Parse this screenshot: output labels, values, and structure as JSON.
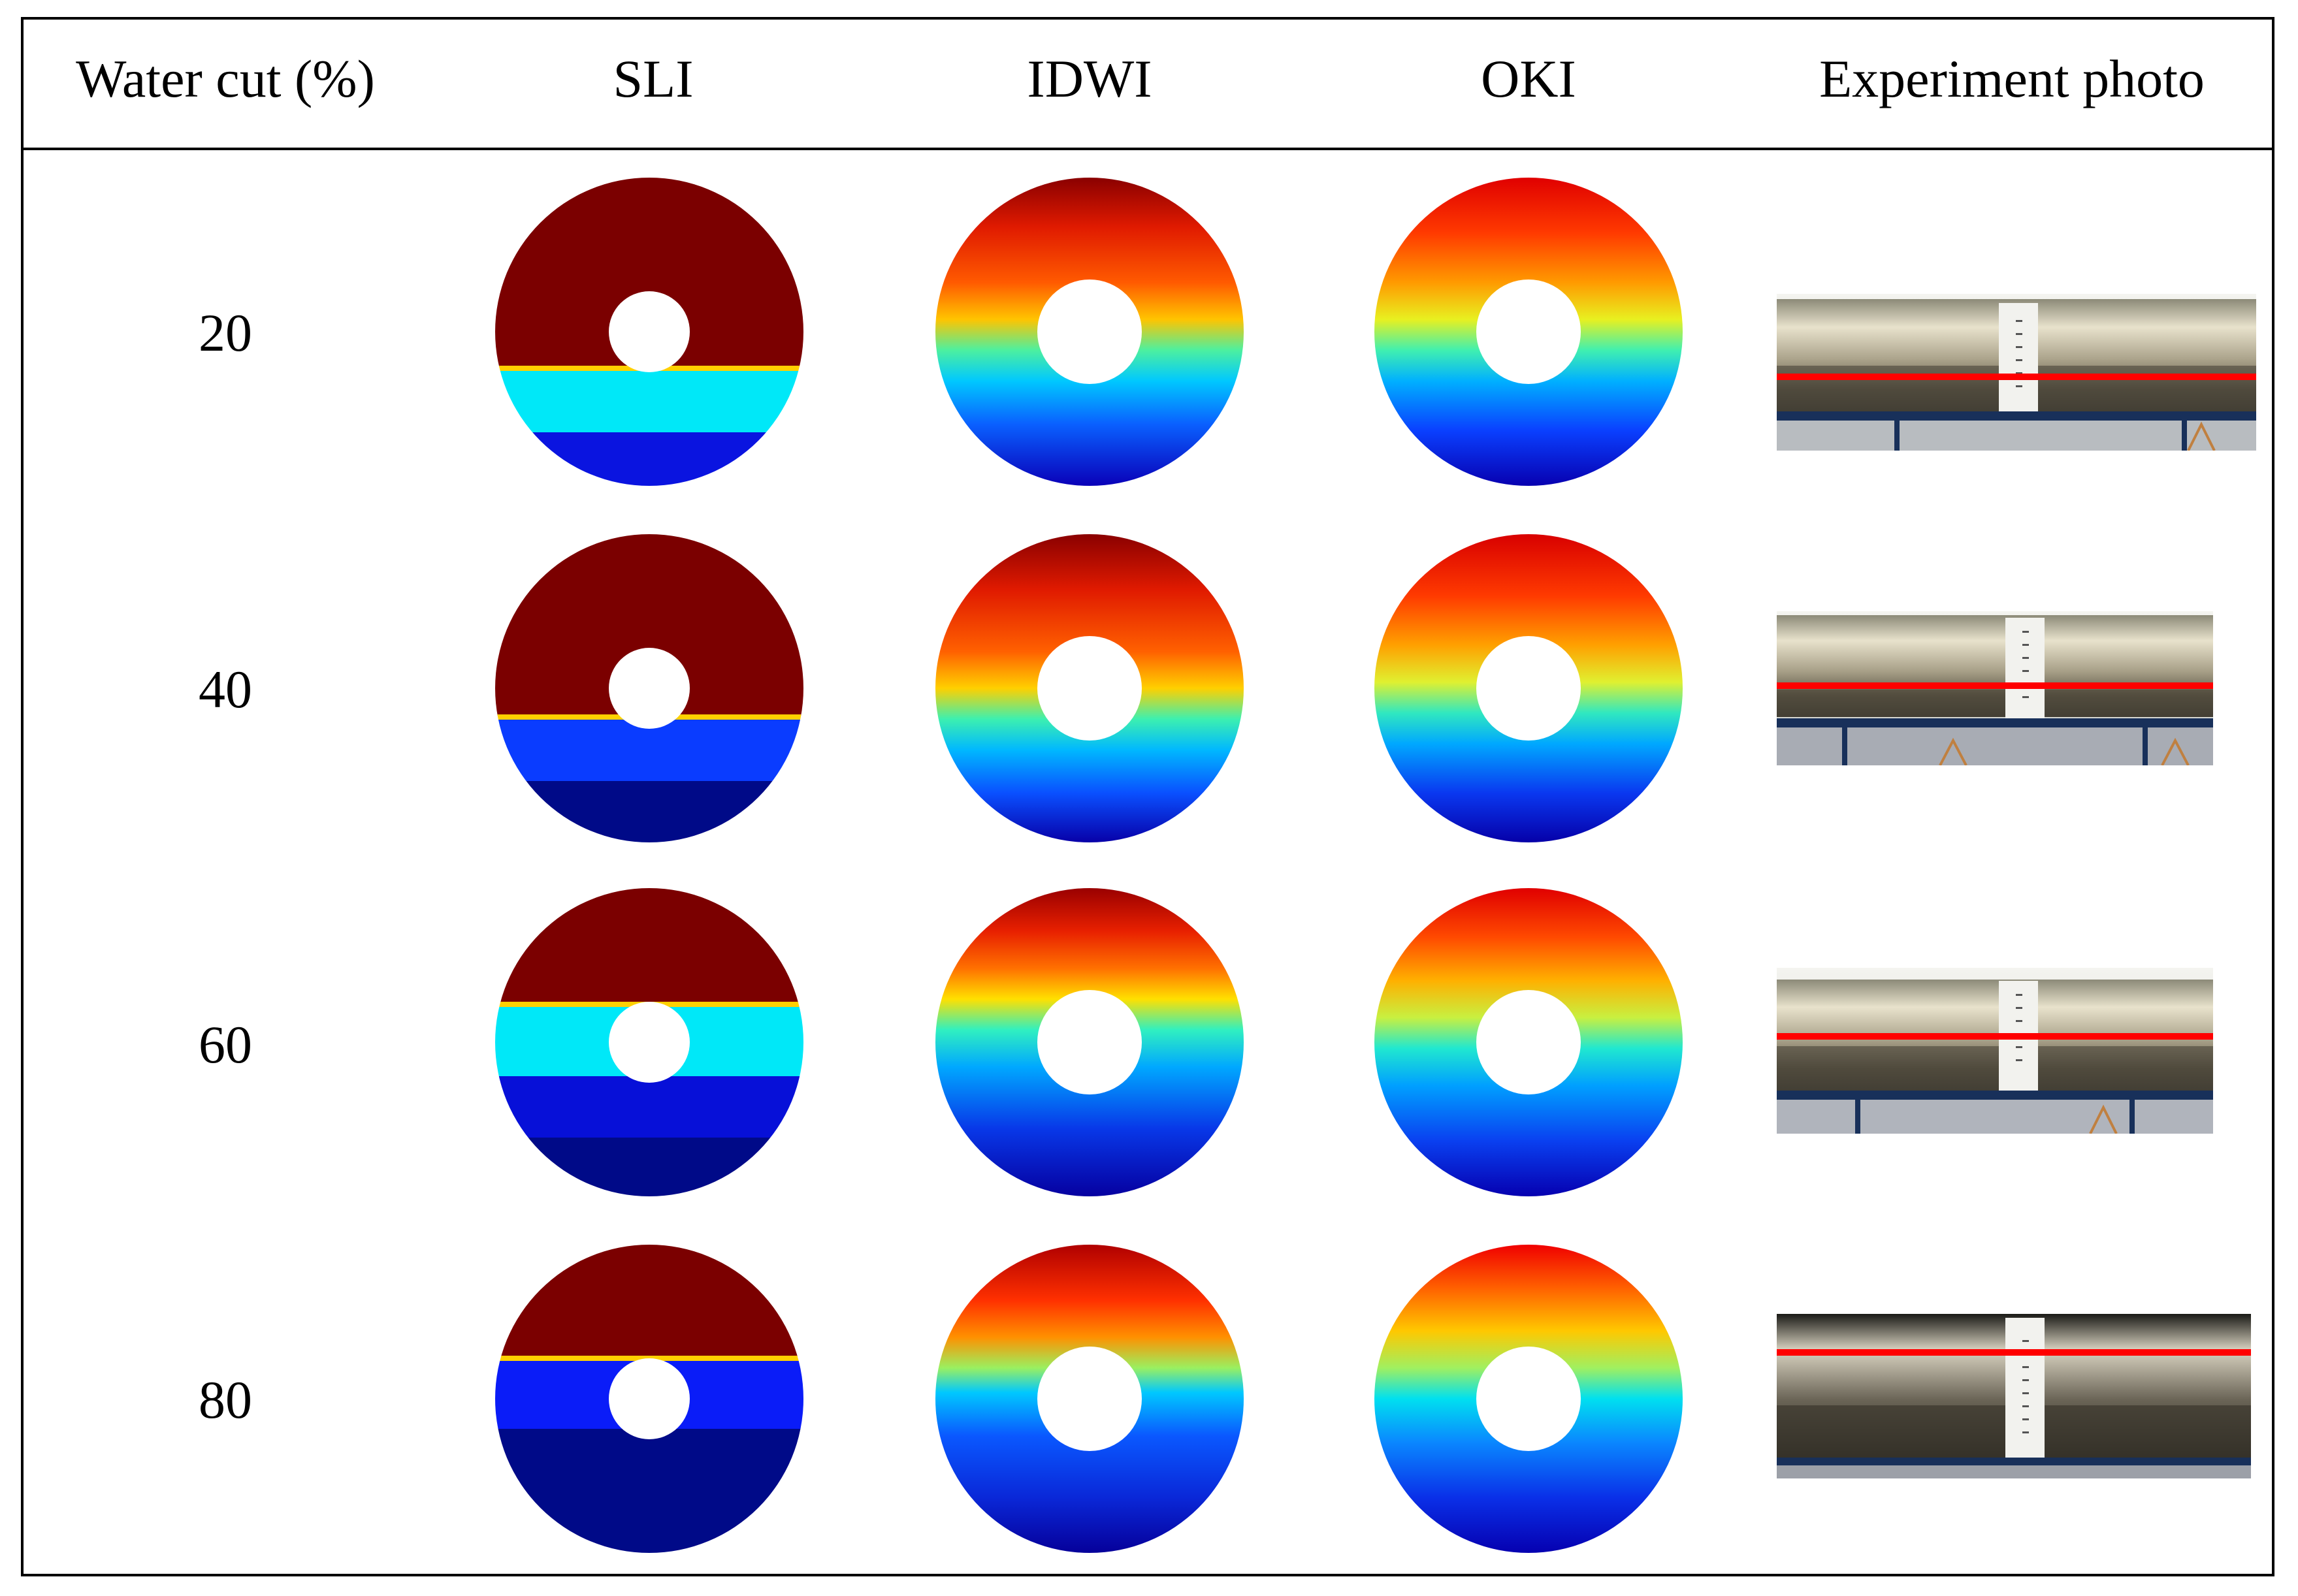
{
  "table": {
    "headers": {
      "water_cut": "Water cut (%)",
      "sli": "SLI",
      "idwi": "IDWI",
      "oki": "OKI",
      "photo": "Experiment photo"
    },
    "rows": [
      {
        "water_cut": "20"
      },
      {
        "water_cut": "40"
      },
      {
        "water_cut": "60"
      },
      {
        "water_cut": "80"
      }
    ]
  },
  "colors": {
    "oil": "#7b0000",
    "transition_cyan": "#00e8f8",
    "transition_blue": "#0a3cff",
    "water_blue": "#0710d8",
    "water_deep": "#000a88",
    "interface_line": "#ff0000",
    "pipe_frame": "#18305a"
  }
}
